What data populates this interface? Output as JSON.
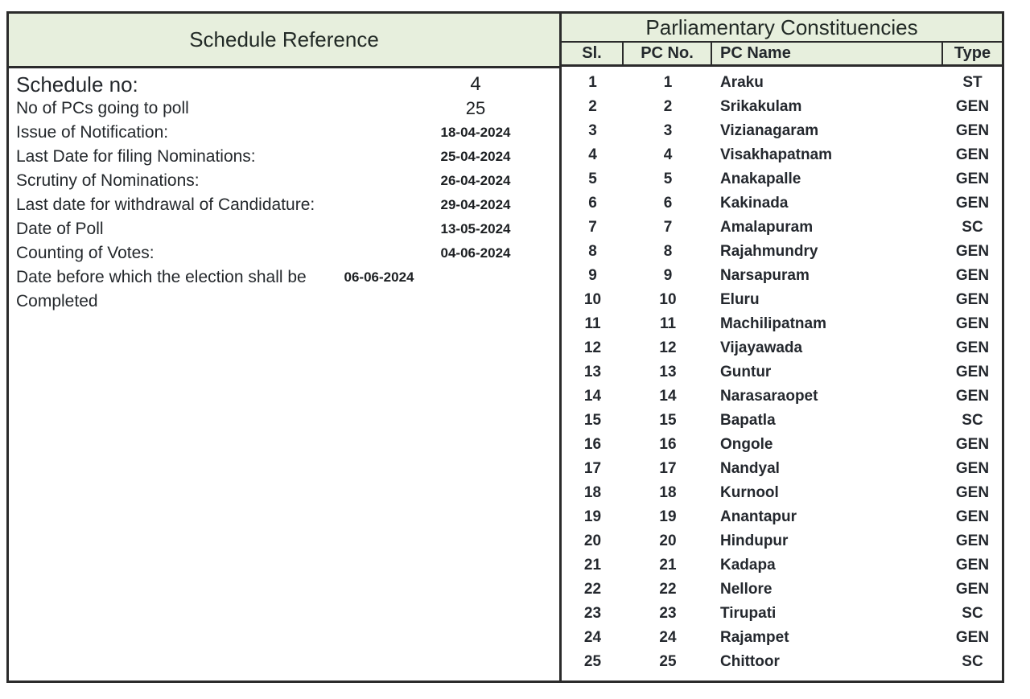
{
  "colors": {
    "header_bg": "#e7efdd",
    "border": "#2b2b2b",
    "text": "#24282c"
  },
  "schedule_reference": {
    "header": "Schedule Reference",
    "rows": [
      {
        "label": "Schedule no:",
        "value": "4"
      },
      {
        "label": "No of PCs going to poll",
        "value": "25"
      },
      {
        "label": "Issue of Notification:",
        "value": "18-04-2024"
      },
      {
        "label": "Last Date for filing Nominations:",
        "value": "25-04-2024"
      },
      {
        "label": "Scrutiny of Nominations:",
        "value": "26-04-2024"
      },
      {
        "label": "Last date for withdrawal of Candidature:",
        "value": "29-04-2024"
      },
      {
        "label": "Date of Poll",
        "value": "13-05-2024"
      },
      {
        "label": "Counting of Votes:",
        "value": "04-06-2024"
      },
      {
        "label": "Date before which the election shall be Completed",
        "value": "06-06-2024"
      }
    ]
  },
  "constituencies": {
    "header": "Parliamentary Constituencies",
    "columns": [
      "Sl.",
      "PC No.",
      "PC Name",
      "Type"
    ],
    "rows": [
      {
        "sl": "1",
        "pc_no": "1",
        "pc_name": "Araku",
        "type": "ST"
      },
      {
        "sl": "2",
        "pc_no": "2",
        "pc_name": "Srikakulam",
        "type": "GEN"
      },
      {
        "sl": "3",
        "pc_no": "3",
        "pc_name": "Vizianagaram",
        "type": "GEN"
      },
      {
        "sl": "4",
        "pc_no": "4",
        "pc_name": "Visakhapatnam",
        "type": "GEN"
      },
      {
        "sl": "5",
        "pc_no": "5",
        "pc_name": "Anakapalle",
        "type": "GEN"
      },
      {
        "sl": "6",
        "pc_no": "6",
        "pc_name": "Kakinada",
        "type": "GEN"
      },
      {
        "sl": "7",
        "pc_no": "7",
        "pc_name": "Amalapuram",
        "type": "SC"
      },
      {
        "sl": "8",
        "pc_no": "8",
        "pc_name": "Rajahmundry",
        "type": "GEN"
      },
      {
        "sl": "9",
        "pc_no": "9",
        "pc_name": "Narsapuram",
        "type": "GEN"
      },
      {
        "sl": "10",
        "pc_no": "10",
        "pc_name": "Eluru",
        "type": "GEN"
      },
      {
        "sl": "11",
        "pc_no": "11",
        "pc_name": "Machilipatnam",
        "type": "GEN"
      },
      {
        "sl": "12",
        "pc_no": "12",
        "pc_name": "Vijayawada",
        "type": "GEN"
      },
      {
        "sl": "13",
        "pc_no": "13",
        "pc_name": "Guntur",
        "type": "GEN"
      },
      {
        "sl": "14",
        "pc_no": "14",
        "pc_name": "Narasaraopet",
        "type": "GEN"
      },
      {
        "sl": "15",
        "pc_no": "15",
        "pc_name": "Bapatla",
        "type": "SC"
      },
      {
        "sl": "16",
        "pc_no": "16",
        "pc_name": "Ongole",
        "type": "GEN"
      },
      {
        "sl": "17",
        "pc_no": "17",
        "pc_name": "Nandyal",
        "type": "GEN"
      },
      {
        "sl": "18",
        "pc_no": "18",
        "pc_name": "Kurnool",
        "type": "GEN"
      },
      {
        "sl": "19",
        "pc_no": "19",
        "pc_name": "Anantapur",
        "type": "GEN"
      },
      {
        "sl": "20",
        "pc_no": "20",
        "pc_name": "Hindupur",
        "type": "GEN"
      },
      {
        "sl": "21",
        "pc_no": "21",
        "pc_name": "Kadapa",
        "type": "GEN"
      },
      {
        "sl": "22",
        "pc_no": "22",
        "pc_name": "Nellore",
        "type": "GEN"
      },
      {
        "sl": "23",
        "pc_no": "23",
        "pc_name": "Tirupati",
        "type": "SC"
      },
      {
        "sl": "24",
        "pc_no": "24",
        "pc_name": "Rajampet",
        "type": "GEN"
      },
      {
        "sl": "25",
        "pc_no": "25",
        "pc_name": "Chittoor",
        "type": "SC"
      }
    ]
  }
}
